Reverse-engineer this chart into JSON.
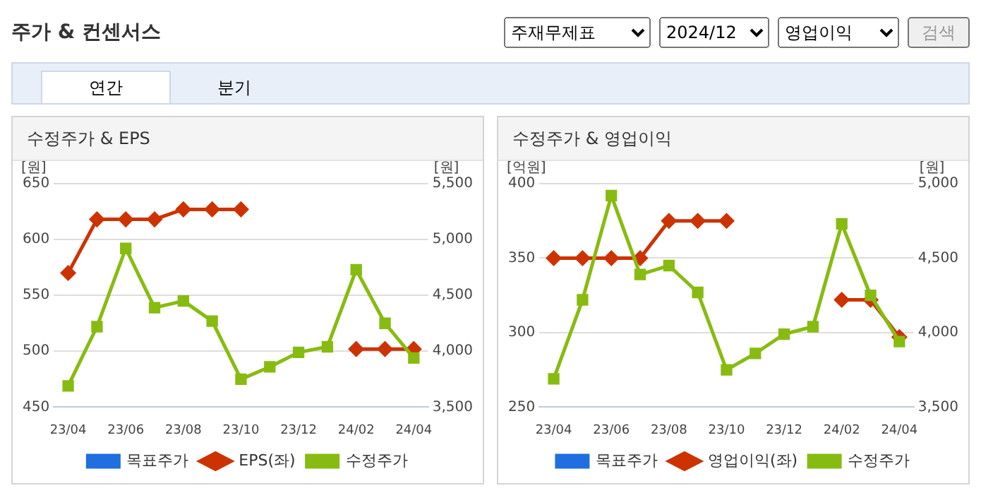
{
  "chart_data": [
    {
      "type": "other",
      "title": "주가 & 컨센서스",
      "annotations": [
        "주재무제표",
        "2024/12",
        "영업이익",
        "검색",
        "연간",
        "분기"
      ]
    },
    {
      "type": "line",
      "title": "수정주가 & EPS",
      "ylabel": "[원]",
      "y2label": "[원]",
      "categories": [
        "23/04",
        null,
        "23/06",
        null,
        "23/08",
        null,
        "23/10",
        null,
        "23/12",
        null,
        "24/02",
        null,
        "24/04"
      ],
      "series": [
        {
          "name": "목표주가",
          "type": "line",
          "color": "#1f6fe0",
          "marker": "square",
          "axis": "y2",
          "values": [
            null,
            null,
            null,
            null,
            null,
            null,
            null,
            null,
            null,
            null,
            null,
            null,
            null
          ]
        },
        {
          "name": "EPS(좌)",
          "type": "line",
          "color": "#cc3300",
          "marker": "diamond",
          "values": [
            570,
            618,
            618,
            618,
            627,
            627,
            627,
            null,
            null,
            null,
            502,
            502,
            502
          ]
        },
        {
          "name": "수정주가",
          "type": "line",
          "color": "#88bb11",
          "marker": "square",
          "axis": "y2",
          "values": [
            3690,
            4220,
            4920,
            4390,
            4450,
            4270,
            3750,
            3860,
            3990,
            4040,
            4730,
            4250,
            3940
          ]
        }
      ],
      "ylim": [
        450,
        650
      ],
      "yticks": [
        450,
        500,
        550,
        600,
        650
      ],
      "y2lim": [
        3500,
        5500
      ],
      "y2ticks": [
        {
          "value": 3500,
          "label": "3,500"
        },
        {
          "value": 4000,
          "label": "4,000"
        },
        {
          "value": 4500,
          "label": "4,500"
        },
        {
          "value": 5000,
          "label": "5,000"
        },
        {
          "value": 5500,
          "label": "5,500"
        }
      ],
      "grid": "y",
      "legend": "bottom",
      "line_style": "solid"
    },
    {
      "type": "line",
      "title": "수정주가 & 영업이익",
      "ylabel": "[억원]",
      "y2label": "[원]",
      "categories": [
        "23/04",
        null,
        "23/06",
        null,
        "23/08",
        null,
        "23/10",
        null,
        "23/12",
        null,
        "24/02",
        null,
        "24/04"
      ],
      "series": [
        {
          "name": "목표주가",
          "type": "line",
          "color": "#1f6fe0",
          "marker": "square",
          "axis": "y2",
          "values": [
            null,
            null,
            null,
            null,
            null,
            null,
            null,
            null,
            null,
            null,
            null,
            null,
            null
          ]
        },
        {
          "name": "영업이익(좌)",
          "type": "line",
          "color": "#cc3300",
          "marker": "diamond",
          "values": [
            350,
            350,
            350,
            350,
            375,
            375,
            375,
            null,
            null,
            null,
            322,
            322,
            297
          ]
        },
        {
          "name": "수정주가",
          "type": "line",
          "color": "#88bb11",
          "marker": "square",
          "axis": "y2",
          "values": [
            3690,
            4220,
            4920,
            4390,
            4450,
            4270,
            3750,
            3860,
            3990,
            4040,
            4730,
            4250,
            3940
          ]
        }
      ],
      "ylim": [
        250,
        400
      ],
      "yticks": [
        250,
        300,
        350,
        400
      ],
      "y2lim": [
        3500,
        5000
      ],
      "y2ticks": [
        {
          "value": 3500,
          "label": "3,500"
        },
        {
          "value": 4000,
          "label": "4,000"
        },
        {
          "value": 4500,
          "label": "4,500"
        },
        {
          "value": 5000,
          "label": "5,000"
        }
      ],
      "grid": "y",
      "legend": "bottom",
      "line_style": "solid"
    }
  ]
}
